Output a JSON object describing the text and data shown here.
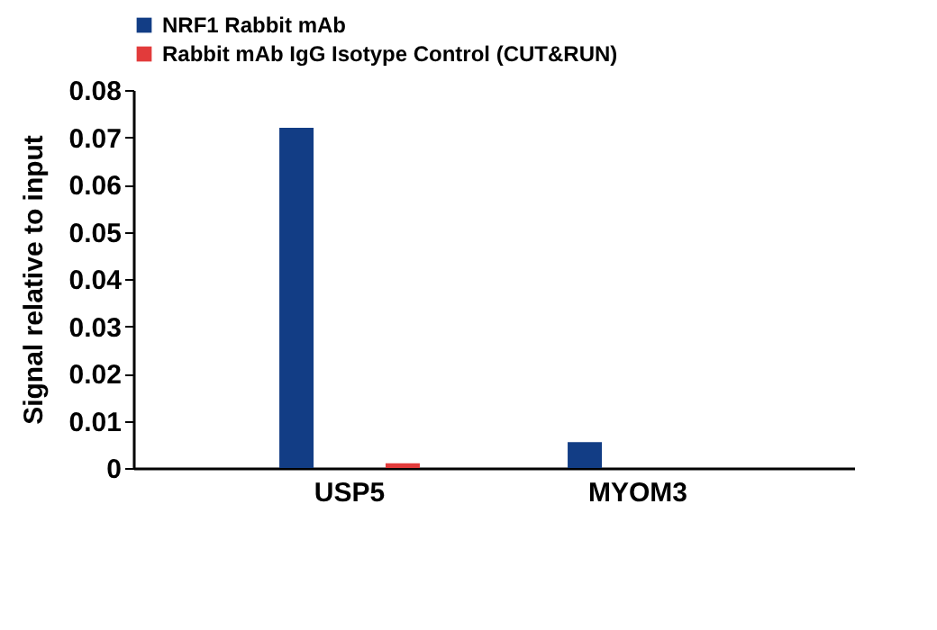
{
  "chart_data": {
    "type": "bar",
    "ylabel": "Signal relative to input",
    "categories": [
      "USP5",
      "MYOM3"
    ],
    "series": [
      {
        "name": "NRF1 Rabbit mAb",
        "color": "#123d85",
        "values": [
          0.072,
          0.0055
        ]
      },
      {
        "name": "Rabbit mAb IgG Isotype Control (CUT&RUN)",
        "color": "#e23b3b",
        "values": [
          0.001,
          0
        ]
      }
    ],
    "ylim": [
      0,
      0.08
    ],
    "yticks": [
      0,
      0.01,
      0.02,
      0.03,
      0.04,
      0.05,
      0.06,
      0.07,
      0.08
    ],
    "grid": false,
    "legend": "top left"
  }
}
